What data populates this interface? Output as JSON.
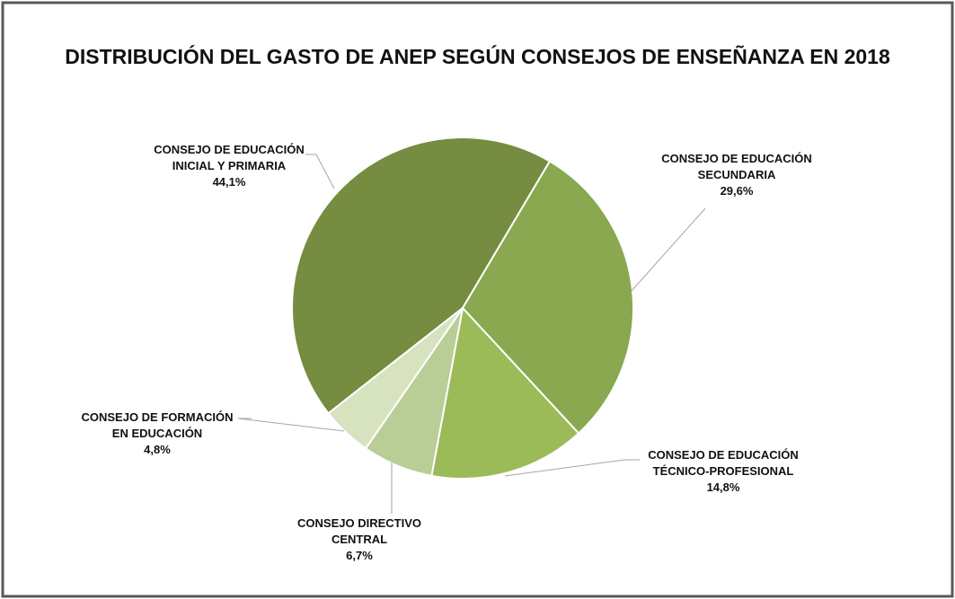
{
  "chart_data": {
    "type": "pie",
    "title": "DISTRIBUCIÓN DEL GASTO DE ANEP SEGÚN CONSEJOS DE ENSEÑANZA EN 2018",
    "categories": [
      "CONSEJO DE EDUCACIÓN INICIAL Y PRIMARIA",
      "CONSEJO DE EDUCACIÓN SECUNDARIA",
      "CONSEJO DE EDUCACIÓN TÉCNICO-PROFESIONAL",
      "CONSEJO DIRECTIVO CENTRAL",
      "CONSEJO DE FORMACIÓN EN EDUCACIÓN"
    ],
    "values": [
      44.1,
      29.6,
      14.8,
      6.7,
      4.8
    ],
    "value_labels": [
      "44,1%",
      "29,6%",
      "14,8%",
      "6,7%",
      "4,8%"
    ],
    "colors": [
      "#758c41",
      "#8aa84f",
      "#9bbb59",
      "#b9cd96",
      "#d7e3bf"
    ]
  }
}
